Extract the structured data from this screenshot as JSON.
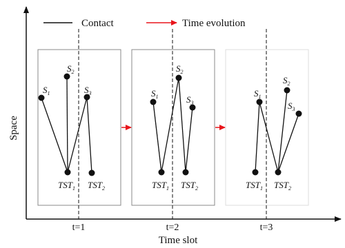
{
  "legend": {
    "contact": "Contact",
    "time_evolution": "Time evolution"
  },
  "axes": {
    "y_label": "Space",
    "x_label": "Time slot"
  },
  "colors": {
    "contact_line": "#111111",
    "time_arrow": "#e8141b",
    "panel_border": "#888888"
  },
  "node_labels": {
    "s": "S",
    "tst": "TST",
    "sub1": "1",
    "sub2": "2",
    "sub3": "3"
  },
  "ticks": [
    {
      "label": "t=1"
    },
    {
      "label": "t=2"
    },
    {
      "label": "t=3"
    }
  ],
  "panels": [
    {
      "contacts": [
        [
          "S1",
          "TST1"
        ],
        [
          "S2",
          "TST1"
        ],
        [
          "S3",
          "TST1"
        ],
        [
          "S3",
          "TST2"
        ]
      ]
    },
    {
      "contacts": [
        [
          "S1",
          "TST1"
        ],
        [
          "S2",
          "TST1"
        ],
        [
          "S2",
          "TST2"
        ],
        [
          "S3",
          "TST2"
        ]
      ]
    },
    {
      "contacts": [
        [
          "S1",
          "TST1"
        ],
        [
          "S1",
          "TST2"
        ],
        [
          "S2",
          "TST2"
        ],
        [
          "S3",
          "TST2"
        ]
      ]
    }
  ]
}
